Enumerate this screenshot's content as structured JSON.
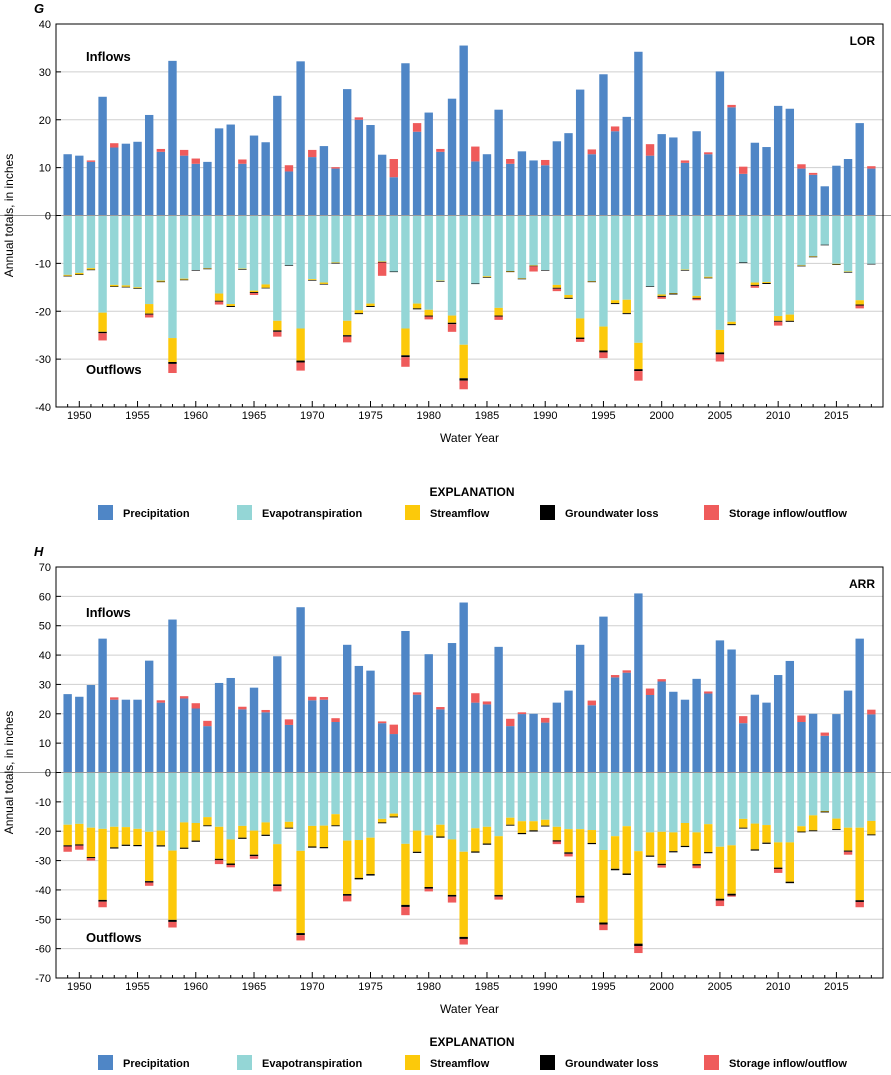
{
  "colors": {
    "precipitation": "#4f86c6",
    "evapotranspiration": "#94d6d6",
    "streamflow": "#fcc90a",
    "groundwater_loss": "#000000",
    "storage": "#ef5b5b",
    "grid": "#cfcfcf",
    "zero_line": "#9a9a9a"
  },
  "legend": {
    "title": "EXPLANATION",
    "items": [
      {
        "key": "precipitation",
        "label": "Precipitation"
      },
      {
        "key": "evapotranspiration",
        "label": "Evapotranspiration"
      },
      {
        "key": "streamflow",
        "label": "Streamflow"
      },
      {
        "key": "groundwater_loss",
        "label": "Groundwater loss"
      },
      {
        "key": "storage",
        "label": "Storage inflow/outflow"
      }
    ]
  },
  "chart_data": [
    {
      "type": "bar",
      "panel_letter": "G",
      "site": "LOR",
      "inflows_label": "Inflows",
      "outflows_label": "Outflows",
      "xlabel": "Water Year",
      "ylabel": "Annual totals, in inches",
      "ylim": [
        -40,
        40
      ],
      "yticks": [
        -40,
        -30,
        -20,
        -10,
        0,
        10,
        20,
        30,
        40
      ],
      "xticks": [
        1950,
        1955,
        1960,
        1965,
        1970,
        1975,
        1980,
        1985,
        1990,
        1995,
        2000,
        2005,
        2010,
        2015
      ],
      "grid": true,
      "years": [
        1949,
        1950,
        1951,
        1952,
        1953,
        1954,
        1955,
        1956,
        1957,
        1958,
        1959,
        1960,
        1961,
        1962,
        1963,
        1964,
        1965,
        1966,
        1967,
        1968,
        1969,
        1970,
        1971,
        1972,
        1973,
        1974,
        1975,
        1976,
        1977,
        1978,
        1979,
        1980,
        1981,
        1982,
        1983,
        1984,
        1985,
        1986,
        1987,
        1988,
        1989,
        1990,
        1991,
        1992,
        1993,
        1994,
        1995,
        1996,
        1997,
        1998,
        1999,
        2000,
        2001,
        2002,
        2003,
        2004,
        2005,
        2006,
        2007,
        2008,
        2009,
        2010,
        2011,
        2012,
        2013,
        2014,
        2015,
        2016,
        2017,
        2018
      ],
      "inflows": {
        "precipitation": [
          12.8,
          12.5,
          11.2,
          24.8,
          14.2,
          15.0,
          15.4,
          21.0,
          13.3,
          32.3,
          12.5,
          10.8,
          11.2,
          18.2,
          19.0,
          10.8,
          16.7,
          15.3,
          25.0,
          9.2,
          32.2,
          12.2,
          14.5,
          9.8,
          26.4,
          20.0,
          18.9,
          12.7,
          8.0,
          31.8,
          17.5,
          21.5,
          13.3,
          24.4,
          35.5,
          11.3,
          12.8,
          22.1,
          10.8,
          13.4,
          11.5,
          10.5,
          15.5,
          17.2,
          26.3,
          12.8,
          29.5,
          17.6,
          20.6,
          34.2,
          12.5,
          17.0,
          16.3,
          11.0,
          17.6,
          12.8,
          30.1,
          22.6,
          8.7,
          15.2,
          14.3,
          22.9,
          22.3,
          9.8,
          8.5,
          6.1,
          10.4,
          11.8,
          19.3,
          9.8
        ],
        "storage": [
          0,
          0,
          0.3,
          0,
          0.9,
          0,
          0,
          0,
          0.6,
          0,
          1.2,
          1.1,
          0,
          0,
          0,
          0.9,
          0,
          0,
          0,
          1.3,
          0,
          1.5,
          0,
          0.3,
          0,
          0.5,
          0,
          0,
          3.8,
          0,
          1.8,
          0,
          0.6,
          0,
          0,
          3.1,
          0,
          0,
          1.0,
          0,
          0,
          1.1,
          0,
          0,
          0,
          1.0,
          0,
          1.0,
          0,
          0,
          2.4,
          0,
          0,
          0.5,
          0,
          0.4,
          0,
          0.5,
          1.5,
          0,
          0,
          0,
          0,
          0.9,
          0.4,
          0,
          0,
          0,
          0,
          0.5
        ]
      },
      "outflows": {
        "evapotranspiration": [
          12.4,
          12.0,
          11.0,
          20.3,
          14.5,
          14.6,
          15.0,
          18.5,
          13.6,
          25.6,
          13.2,
          11.4,
          11.0,
          16.3,
          18.5,
          11.1,
          15.7,
          14.4,
          22.0,
          10.4,
          23.6,
          13.3,
          14.0,
          9.8,
          22.0,
          19.8,
          18.4,
          9.6,
          11.7,
          23.6,
          18.4,
          19.7,
          13.6,
          20.9,
          27.0,
          14.2,
          12.7,
          19.3,
          11.6,
          13.1,
          10.4,
          11.4,
          14.5,
          16.6,
          21.5,
          13.7,
          23.2,
          17.7,
          17.6,
          26.6,
          14.8,
          16.5,
          16.2,
          11.3,
          16.8,
          12.8,
          23.9,
          22.2,
          9.8,
          14.0,
          13.9,
          21.0,
          20.7,
          10.4,
          8.5,
          6.1,
          10.1,
          11.7,
          17.7,
          10.1
        ],
        "streamflow": [
          0.2,
          0.3,
          0.3,
          4.0,
          0.3,
          0.3,
          0.2,
          2.0,
          0.2,
          5.0,
          0.2,
          0,
          0.1,
          1.5,
          0.4,
          0.1,
          0.3,
          0.7,
          2.0,
          0,
          6.7,
          0.2,
          0.3,
          0.1,
          3.0,
          0.6,
          0.5,
          0.1,
          0,
          5.6,
          1.0,
          1.2,
          0.1,
          1.5,
          7.0,
          0,
          0.2,
          1.6,
          0.1,
          0.1,
          0.1,
          0,
          0.6,
          0.6,
          4.0,
          0.1,
          5.0,
          0.6,
          2.8,
          5.5,
          0,
          0.3,
          0.1,
          0.1,
          0.4,
          0.2,
          4.7,
          0.5,
          0,
          0.5,
          0.2,
          1.0,
          1.3,
          0.1,
          0.1,
          0,
          0.1,
          0.1,
          0.9,
          0
        ],
        "groundwater_loss": [
          0.1,
          0.1,
          0.1,
          0.3,
          0.1,
          0.1,
          0.1,
          0.2,
          0.1,
          0.4,
          0.1,
          0.1,
          0.1,
          0.2,
          0.2,
          0.1,
          0.2,
          0.1,
          0.3,
          0.1,
          0.4,
          0.1,
          0.1,
          0.1,
          0.3,
          0.2,
          0.2,
          0.1,
          0.1,
          0.4,
          0.2,
          0.2,
          0.1,
          0.3,
          0.5,
          0.1,
          0.1,
          0.2,
          0.1,
          0.1,
          0.1,
          0.1,
          0.2,
          0.2,
          0.3,
          0.1,
          0.4,
          0.2,
          0.2,
          0.4,
          0.1,
          0.2,
          0.2,
          0.1,
          0.2,
          0.1,
          0.4,
          0.2,
          0.1,
          0.2,
          0.2,
          0.2,
          0.2,
          0.1,
          0.1,
          0.1,
          0.1,
          0.1,
          0.2,
          0.1
        ],
        "storage": [
          0,
          0,
          0,
          1.5,
          0,
          0,
          0,
          0.6,
          0,
          1.9,
          0,
          0,
          0,
          0.6,
          0,
          0,
          0.4,
          0,
          1.0,
          0,
          1.7,
          0,
          0,
          0,
          1.2,
          0,
          0,
          2.8,
          0,
          2.0,
          0,
          0.6,
          0,
          1.6,
          1.8,
          0,
          0,
          0.7,
          0,
          0,
          1.1,
          0,
          0.5,
          0,
          0.6,
          0,
          1.2,
          0,
          0,
          2.0,
          0,
          0.4,
          0,
          0,
          0.3,
          0,
          1.5,
          0,
          0,
          0.4,
          0,
          0.8,
          0,
          0,
          0,
          0,
          0,
          0,
          0.6,
          0
        ]
      }
    },
    {
      "type": "bar",
      "panel_letter": "H",
      "site": "ARR",
      "inflows_label": "Inflows",
      "outflows_label": "Outflows",
      "xlabel": "Water Year",
      "ylabel": "Annual totals, in inches",
      "ylim": [
        -70,
        70
      ],
      "yticks": [
        -70,
        -60,
        -50,
        -40,
        -30,
        -20,
        -10,
        0,
        10,
        20,
        30,
        40,
        50,
        60,
        70
      ],
      "xticks": [
        1950,
        1955,
        1960,
        1965,
        1970,
        1975,
        1980,
        1985,
        1990,
        1995,
        2000,
        2005,
        2010,
        2015
      ],
      "grid": true,
      "years": [
        1949,
        1950,
        1951,
        1952,
        1953,
        1954,
        1955,
        1956,
        1957,
        1958,
        1959,
        1960,
        1961,
        1962,
        1963,
        1964,
        1965,
        1966,
        1967,
        1968,
        1969,
        1970,
        1971,
        1972,
        1973,
        1974,
        1975,
        1976,
        1977,
        1978,
        1979,
        1980,
        1981,
        1982,
        1983,
        1984,
        1985,
        1986,
        1987,
        1988,
        1989,
        1990,
        1991,
        1992,
        1993,
        1994,
        1995,
        1996,
        1997,
        1998,
        1999,
        2000,
        2001,
        2002,
        2003,
        2004,
        2005,
        2006,
        2007,
        2008,
        2009,
        2010,
        2011,
        2012,
        2013,
        2014,
        2015,
        2016,
        2017,
        2018
      ],
      "inflows": {
        "precipitation": [
          26.7,
          25.8,
          29.8,
          45.6,
          24.8,
          24.8,
          24.8,
          38.1,
          23.8,
          52.1,
          25.2,
          21.8,
          15.8,
          30.5,
          32.2,
          21.5,
          28.9,
          20.5,
          39.6,
          16.2,
          56.3,
          24.6,
          24.8,
          17.2,
          43.5,
          36.3,
          34.7,
          16.8,
          13.1,
          48.2,
          26.5,
          40.3,
          21.5,
          44.1,
          57.9,
          23.8,
          23.2,
          42.8,
          15.8,
          19.9,
          20.0,
          17.0,
          23.8,
          27.9,
          43.5,
          22.9,
          53.1,
          32.4,
          34.0,
          61.0,
          26.4,
          31.0,
          27.5,
          24.8,
          31.9,
          26.9,
          45.0,
          41.9,
          16.8,
          26.5,
          23.8,
          33.2,
          38.0,
          17.2,
          20.0,
          12.5,
          19.9,
          27.9,
          45.6,
          19.8
        ],
        "storage": [
          0,
          0,
          0,
          0,
          0.8,
          0,
          0,
          0,
          0.8,
          0,
          0.8,
          1.8,
          1.8,
          0,
          0,
          0.9,
          0,
          0.8,
          0,
          1.9,
          0,
          1.2,
          0.9,
          1.3,
          0,
          0,
          0,
          0.6,
          3.2,
          0,
          0.8,
          0,
          0.8,
          0,
          0,
          3.2,
          1.0,
          0,
          2.5,
          0.6,
          0,
          1.6,
          0,
          0,
          0,
          1.6,
          0,
          0.8,
          0.8,
          0,
          2.2,
          0.8,
          0,
          0,
          0,
          0.7,
          0,
          0,
          2.4,
          0,
          0,
          0,
          0,
          2.2,
          0,
          1.1,
          0,
          0,
          0,
          1.6
        ]
      },
      "outflows": {
        "evapotranspiration": [
          17.8,
          17.5,
          18.8,
          19.2,
          18.5,
          18.6,
          19.2,
          20.2,
          19.8,
          26.6,
          17.0,
          17.2,
          15.2,
          18.5,
          22.8,
          18.2,
          19.8,
          17.0,
          24.4,
          16.8,
          26.7,
          18.2,
          18.1,
          14.2,
          23.2,
          23.0,
          22.2,
          15.8,
          14.0,
          24.3,
          19.8,
          21.4,
          17.8,
          22.8,
          27.0,
          19.0,
          18.5,
          21.7,
          15.4,
          16.6,
          16.6,
          16.1,
          18.5,
          19.3,
          19.3,
          19.6,
          26.4,
          21.7,
          18.3,
          26.8,
          20.4,
          20.2,
          20.4,
          17.2,
          20.4,
          17.6,
          25.3,
          24.8,
          15.8,
          17.4,
          17.9,
          23.8,
          23.8,
          18.3,
          14.6,
          13.1,
          15.7,
          18.8,
          18.8,
          16.5
        ],
        "streamflow": [
          7.0,
          7.0,
          10.0,
          24.2,
          7.0,
          6.0,
          5.5,
          16.8,
          5.0,
          23.6,
          8.6,
          6.0,
          2.8,
          10.9,
          8.2,
          4.0,
          8.2,
          4.2,
          13.7,
          2.0,
          28.0,
          7.0,
          7.3,
          3.8,
          18.2,
          12.9,
          12.4,
          1.2,
          1.0,
          20.8,
          7.2,
          17.6,
          4.0,
          18.9,
          29.0,
          7.9,
          5.7,
          20.0,
          2.4,
          4.0,
          3.1,
          2.0,
          4.6,
          7.9,
          22.7,
          4.4,
          24.7,
          11.1,
          16.1,
          31.5,
          7.9,
          10.9,
          6.4,
          7.8,
          10.8,
          9.5,
          17.7,
          16.5,
          3.0,
          8.8,
          6.0,
          8.6,
          13.4,
          1.8,
          5.1,
          0.2,
          3.6,
          7.8,
          24.7,
          4.6
        ],
        "groundwater_loss": [
          0.4,
          0.4,
          0.4,
          0.6,
          0.4,
          0.4,
          0.4,
          0.5,
          0.4,
          0.7,
          0.4,
          0.4,
          0.3,
          0.5,
          0.5,
          0.4,
          0.5,
          0.4,
          0.6,
          0.3,
          0.7,
          0.4,
          0.4,
          0.3,
          0.6,
          0.5,
          0.5,
          0.3,
          0.3,
          0.7,
          0.4,
          0.6,
          0.4,
          0.6,
          0.7,
          0.4,
          0.4,
          0.6,
          0.3,
          0.4,
          0.4,
          0.3,
          0.4,
          0.5,
          0.6,
          0.4,
          0.7,
          0.5,
          0.5,
          0.8,
          0.4,
          0.5,
          0.4,
          0.4,
          0.5,
          0.4,
          0.6,
          0.6,
          0.3,
          0.4,
          0.4,
          0.5,
          0.5,
          0.3,
          0.3,
          0.3,
          0.3,
          0.4,
          0.6,
          0.3
        ],
        "storage": [
          1.8,
          1.4,
          0.8,
          1.9,
          0,
          0,
          0,
          1.1,
          0,
          1.9,
          0,
          0,
          0,
          1.3,
          0.8,
          0,
          0.9,
          0,
          1.8,
          0,
          1.8,
          0,
          0,
          0,
          1.9,
          0,
          0,
          0,
          0,
          2.8,
          0,
          0.9,
          0,
          2.0,
          1.9,
          0,
          0,
          1.0,
          0,
          0,
          0,
          0,
          0.9,
          0.9,
          1.8,
          0,
          1.9,
          0,
          0,
          2.4,
          0,
          0.8,
          0,
          0,
          0.9,
          0,
          1.9,
          0.4,
          0,
          0,
          0,
          1.3,
          0,
          0,
          0,
          0,
          0,
          1.0,
          1.8,
          0
        ]
      }
    }
  ]
}
